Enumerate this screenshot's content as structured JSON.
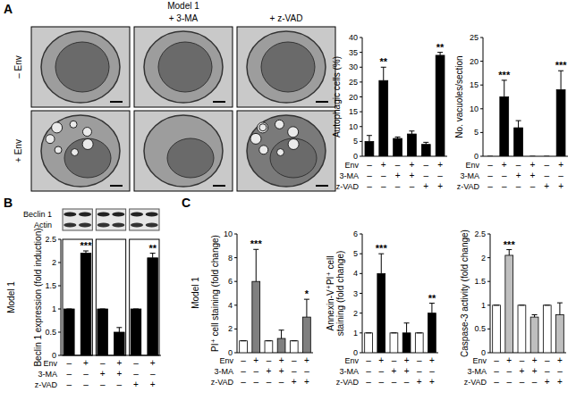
{
  "figure": {
    "panel_labels": [
      "A",
      "B",
      "C"
    ],
    "image_title": "Model 1",
    "image_columns": [
      null,
      "+ 3-MA",
      "+ z-VAD"
    ],
    "image_rows": [
      "– Env",
      "+ Env"
    ],
    "blot_labels": [
      "Beclin 1",
      "Actin"
    ],
    "side_label_b": "Model 1",
    "side_label_c": "Model 1"
  },
  "chart_data": [
    {
      "type": "bar",
      "y_label": "Autophagic cells (%)",
      "values": [
        5,
        25.5,
        6,
        7.5,
        4,
        34
      ],
      "error": [
        2,
        4.5,
        0.5,
        1,
        0.7,
        1
      ],
      "significance": [
        null,
        "**",
        null,
        null,
        null,
        "**"
      ],
      "colors": [
        "#000000",
        "#000000",
        "#000000",
        "#000000",
        "#000000",
        "#000000"
      ],
      "ylim": [
        0,
        40
      ],
      "yticks": [
        0,
        5,
        10,
        15,
        20,
        25,
        30,
        35,
        40
      ],
      "conditions": [
        {
          "label": "Env",
          "signs": [
            "–",
            "+",
            "–",
            "+",
            "–",
            "+"
          ]
        },
        {
          "label": "3-MA",
          "signs": [
            "–",
            "–",
            "+",
            "+",
            "–",
            "–"
          ]
        },
        {
          "label": "z-VAD",
          "signs": [
            "–",
            "–",
            "–",
            "–",
            "+",
            "+"
          ]
        }
      ]
    },
    {
      "type": "bar",
      "y_label": "No. vacuoles/section",
      "values": [
        0,
        12.5,
        6,
        0,
        0,
        14
      ],
      "error": [
        0,
        3.5,
        1.5,
        0,
        0,
        4
      ],
      "significance": [
        null,
        "***",
        null,
        null,
        null,
        "***"
      ],
      "colors": [
        "#000000",
        "#000000",
        "#000000",
        "#000000",
        "#000000",
        "#000000"
      ],
      "ylim": [
        0,
        25
      ],
      "yticks": [
        0,
        5,
        10,
        15,
        20,
        25
      ],
      "conditions": [
        {
          "label": "Env",
          "signs": [
            "–",
            "+",
            "–",
            "+",
            "–",
            "+"
          ]
        },
        {
          "label": "3-MA",
          "signs": [
            "–",
            "–",
            "+",
            "+",
            "–",
            "–"
          ]
        },
        {
          "label": "z-VAD",
          "signs": [
            "–",
            "–",
            "–",
            "–",
            "+",
            "+"
          ]
        }
      ]
    },
    {
      "type": "bar",
      "y_label": "Beclin 1 expression (fold induction)",
      "values": [
        1,
        2.2,
        1,
        0.5,
        1,
        2.1
      ],
      "error": [
        0,
        0.05,
        0,
        0.1,
        0,
        0.1
      ],
      "significance": [
        null,
        "***",
        null,
        null,
        null,
        "**"
      ],
      "colors": [
        "#000000",
        "#000000",
        "#000000",
        "#000000",
        "#000000",
        "#000000"
      ],
      "ylim": [
        0,
        2.5
      ],
      "yticks": [
        0,
        0.5,
        1,
        1.5,
        2,
        2.5
      ],
      "conditions": [
        {
          "label": "Env",
          "signs": [
            "–",
            "+",
            "–",
            "+",
            "–",
            "+"
          ]
        },
        {
          "label": "3-MA",
          "signs": [
            "–",
            "–",
            "+",
            "+",
            "–",
            "–"
          ]
        },
        {
          "label": "z-VAD",
          "signs": [
            "–",
            "–",
            "–",
            "–",
            "+",
            "+"
          ]
        }
      ]
    },
    {
      "type": "bar",
      "y_label": "PI⁺ cell staining (fold change)",
      "values": [
        1,
        6,
        1,
        1.2,
        1,
        3
      ],
      "error": [
        0,
        2.7,
        0,
        0.7,
        0,
        1.5
      ],
      "significance": [
        null,
        "***",
        null,
        null,
        null,
        "*"
      ],
      "colors": [
        "#ffffff",
        "#808080",
        "#ffffff",
        "#808080",
        "#ffffff",
        "#808080"
      ],
      "ylim": [
        0,
        10
      ],
      "yticks": [
        0,
        2,
        4,
        6,
        8,
        10
      ],
      "conditions": [
        {
          "label": "Env",
          "signs": [
            "–",
            "+",
            "–",
            "+",
            "–",
            "+"
          ]
        },
        {
          "label": "3-MA",
          "signs": [
            "–",
            "–",
            "+",
            "+",
            "–",
            "–"
          ]
        },
        {
          "label": "z-VAD",
          "signs": [
            "–",
            "–",
            "–",
            "–",
            "+",
            "+"
          ]
        }
      ]
    },
    {
      "type": "bar",
      "y_label": [
        "Annexin-V⁺PI⁺ cell",
        "staining (fold change)"
      ],
      "values": [
        1,
        4,
        1,
        1,
        1,
        2
      ],
      "error": [
        0,
        1,
        0,
        0.5,
        0,
        0.5
      ],
      "significance": [
        null,
        "***",
        null,
        null,
        null,
        "**"
      ],
      "colors": [
        "#ffffff",
        "#000000",
        "#ffffff",
        "#000000",
        "#ffffff",
        "#000000"
      ],
      "ylim": [
        0,
        6
      ],
      "yticks": [
        0,
        1,
        2,
        3,
        4,
        5,
        6
      ],
      "conditions": [
        {
          "label": "Env",
          "signs": [
            "–",
            "+",
            "–",
            "+",
            "–",
            "+"
          ]
        },
        {
          "label": "3-MA",
          "signs": [
            "–",
            "–",
            "+",
            "+",
            "–",
            "–"
          ]
        },
        {
          "label": "z-VAD",
          "signs": [
            "–",
            "–",
            "–",
            "–",
            "+",
            "+"
          ]
        }
      ]
    },
    {
      "type": "bar",
      "y_label": "Caspase-3 activity (fold change)",
      "values": [
        1,
        2.05,
        1,
        0.75,
        1,
        0.8
      ],
      "error": [
        0,
        0.12,
        0,
        0.05,
        0,
        0.25
      ],
      "significance": [
        null,
        "***",
        null,
        null,
        null,
        null
      ],
      "colors": [
        "#ffffff",
        "#bfbfbf",
        "#ffffff",
        "#bfbfbf",
        "#ffffff",
        "#bfbfbf"
      ],
      "ylim": [
        0,
        2.5
      ],
      "yticks": [
        0,
        0.5,
        1,
        1.5,
        2,
        2.5
      ],
      "conditions": [
        {
          "label": "Env",
          "signs": [
            "–",
            "+",
            "–",
            "+",
            "–",
            "+"
          ]
        },
        {
          "label": "3-MA",
          "signs": [
            "–",
            "–",
            "+",
            "+",
            "–",
            "–"
          ]
        },
        {
          "label": "z-VAD",
          "signs": [
            "–",
            "–",
            "–",
            "–",
            "+",
            "+"
          ]
        }
      ]
    }
  ]
}
